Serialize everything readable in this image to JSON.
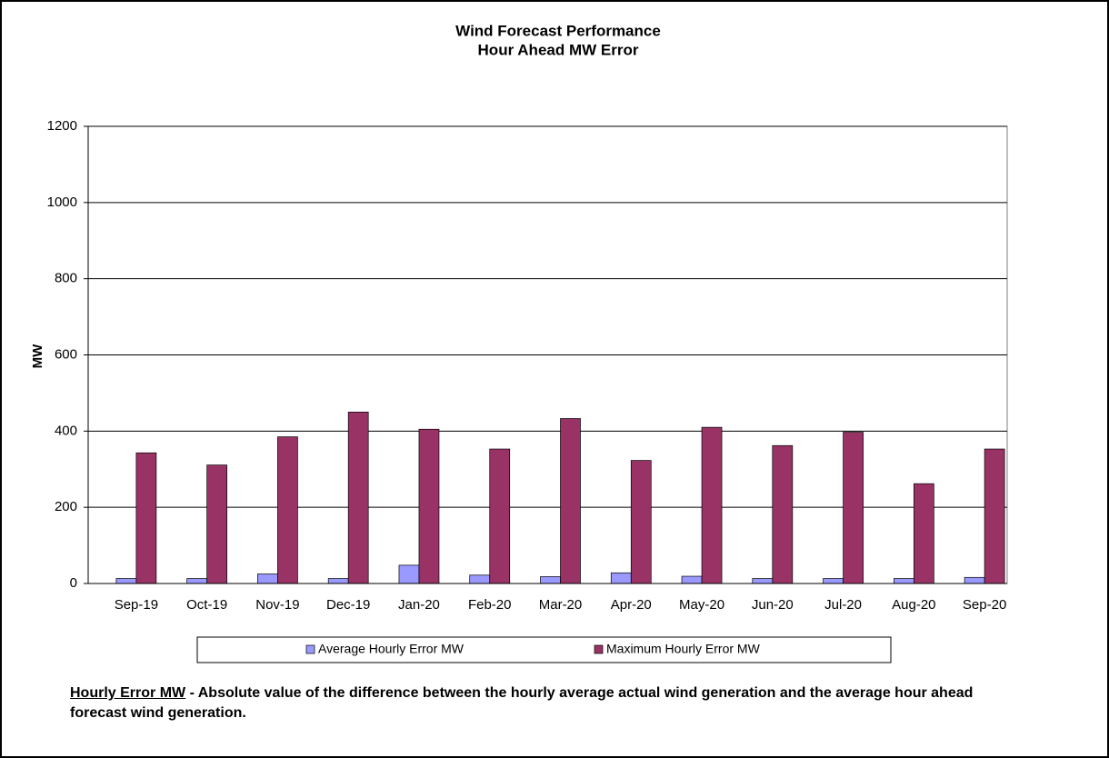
{
  "chart_data": {
    "type": "bar",
    "title": "Wind Forecast Performance",
    "subtitle": "Hour Ahead MW Error",
    "y_label": "MW",
    "categories": [
      "Sep-19",
      "Oct-19",
      "Nov-19",
      "Dec-19",
      "Jan-20",
      "Feb-20",
      "Mar-20",
      "Apr-20",
      "May-20",
      "Jun-20",
      "Jul-20",
      "Aug-20",
      "Sep-20"
    ],
    "series": [
      {
        "name": "Average Hourly Error MW",
        "color": "#9999ff",
        "values": [
          13,
          13,
          25,
          13,
          48,
          22,
          18,
          28,
          19,
          13,
          13,
          13,
          16
        ]
      },
      {
        "name": "Maximum Hourly Error MW",
        "color": "#993366",
        "values": [
          343,
          311,
          385,
          450,
          405,
          353,
          433,
          323,
          410,
          362,
          397,
          262,
          353
        ]
      }
    ],
    "ylim": [
      0,
      1200
    ],
    "yticks": [
      0,
      200,
      400,
      600,
      800,
      1000,
      1200
    ],
    "grid": true,
    "note": {
      "term": "Hourly Error MW",
      "text": " - Absolute value of the difference between the hourly average actual wind generation and the average hour ahead forecast wind generation."
    }
  }
}
